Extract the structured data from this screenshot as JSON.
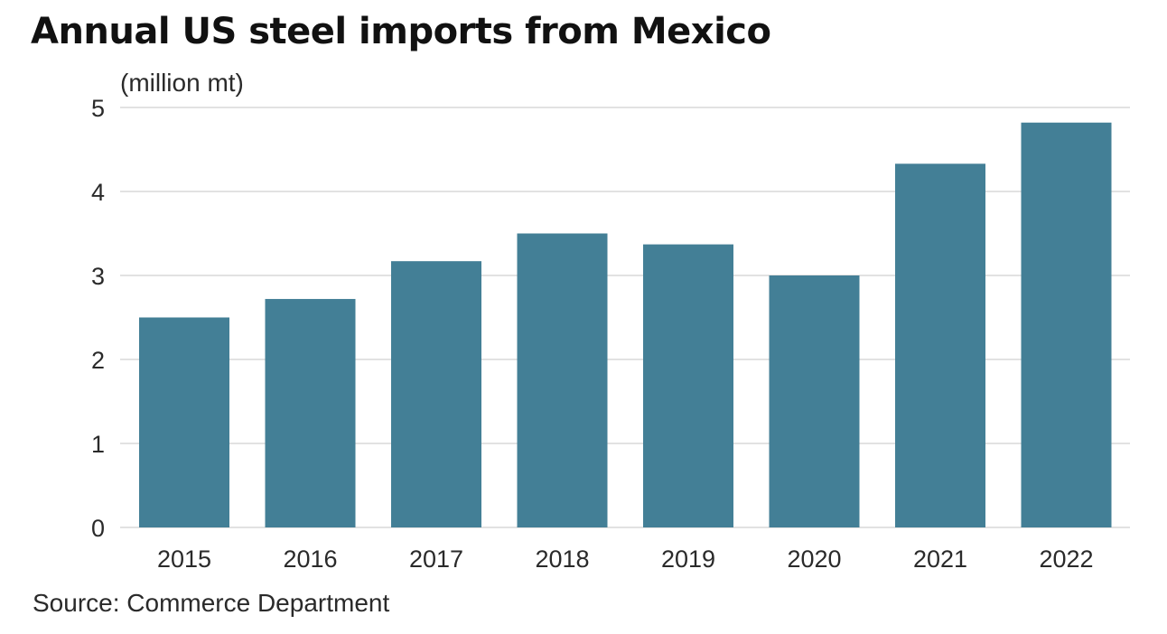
{
  "chart_data": {
    "type": "bar",
    "title": "Annual US steel imports from Mexico",
    "ylabel": "(million mt)",
    "xlabel": "",
    "categories": [
      "2015",
      "2016",
      "2017",
      "2018",
      "2019",
      "2020",
      "2021",
      "2022"
    ],
    "values": [
      2.5,
      2.72,
      3.17,
      3.5,
      3.37,
      3.0,
      4.33,
      4.82
    ],
    "ylim": [
      0,
      5
    ],
    "yticks": [
      "0",
      "1",
      "2",
      "3",
      "4",
      "5"
    ],
    "grid": true,
    "bar_color": "#437f96",
    "grid_color": "#d9d9d9",
    "source": "Source: Commerce Department"
  }
}
